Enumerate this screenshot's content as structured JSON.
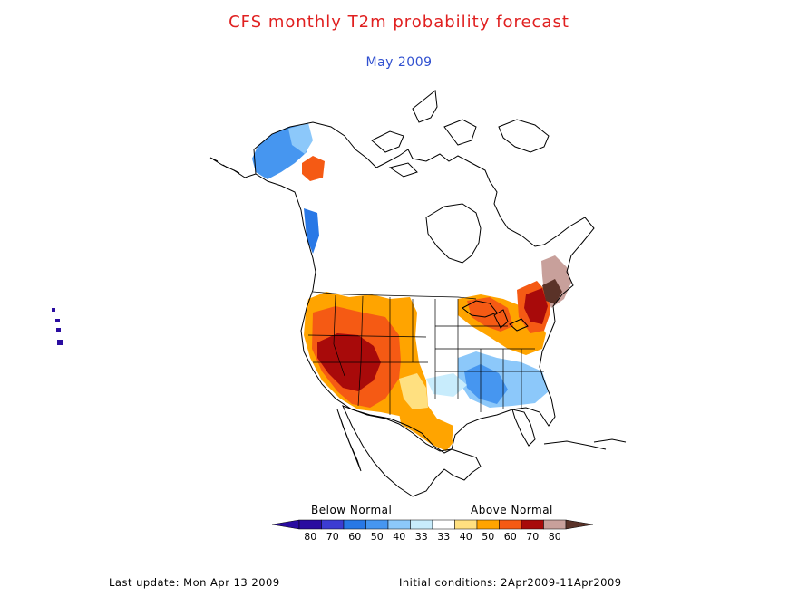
{
  "header": {
    "title": "CFS monthly T2m probability forecast",
    "subtitle": "May 2009"
  },
  "legend": {
    "below_label": "Below Normal",
    "above_label": "Above Normal",
    "bins": [
      {
        "label": "80",
        "color": "#2a0ca0"
      },
      {
        "label": "70",
        "color": "#3c3cd2"
      },
      {
        "label": "60",
        "color": "#2878e6"
      },
      {
        "label": "50",
        "color": "#4696f0"
      },
      {
        "label": "40",
        "color": "#8cc8fa"
      },
      {
        "label": "33",
        "color": "#c8ecfc"
      },
      {
        "label": "33",
        "color": "#ffffff"
      },
      {
        "label": "40",
        "color": "#ffe080"
      },
      {
        "label": "50",
        "color": "#ffa400"
      },
      {
        "label": "60",
        "color": "#f55a14"
      },
      {
        "label": "70",
        "color": "#a80a0a"
      },
      {
        "label": "80",
        "color": "#c8a09b"
      }
    ],
    "end_color_low": "#2a0ca0",
    "end_color_high": "#5a3228"
  },
  "footer": {
    "last_update": "Last update: Mon Apr 13 2009",
    "initial_conditions": "Initial conditions: 2Apr2009-11Apr2009"
  }
}
